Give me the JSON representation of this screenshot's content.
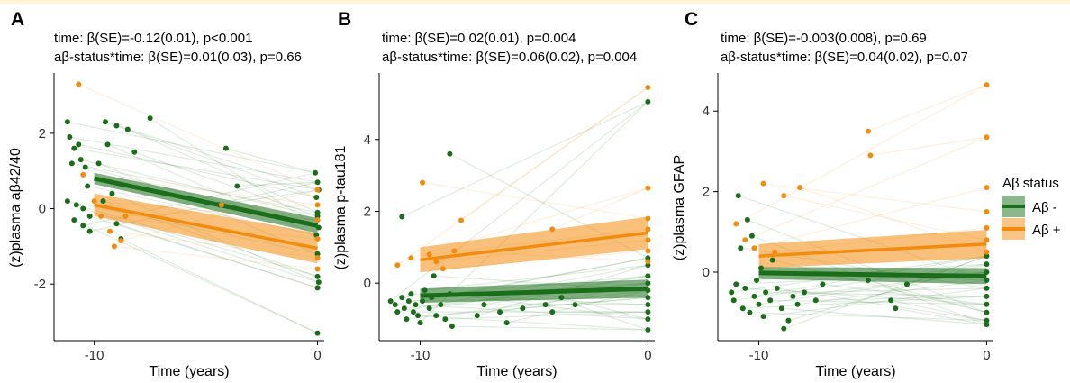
{
  "colors": {
    "neg": "#1a6e1a",
    "pos": "#f28c0f"
  },
  "chart_data": [
    {
      "type": "scatter",
      "panel_label": "A",
      "stats_line1": "time: β(SE)=-0.12(0.01), p<0.001",
      "stats_line2": "aβ-status*time: β(SE)=0.01(0.03), p=0.66",
      "xlabel": "Time (years)",
      "ylabel": "(z)plasma aβ42/40",
      "xlim": [
        -11.8,
        0.3
      ],
      "ylim": [
        -3.5,
        3.55
      ],
      "x_ticks": [
        -10,
        0
      ],
      "y_ticks": [
        -2,
        0,
        2
      ],
      "series": [
        {
          "name": "Aβ -",
          "fit": {
            "x": [
              -10,
              0
            ],
            "y": [
              0.8,
              -0.45
            ]
          },
          "ci": [
            0.15,
            0.2
          ],
          "points": [
            [
              -11.2,
              2.3
            ],
            [
              -11.1,
              1.9
            ],
            [
              -10.9,
              1.6
            ],
            [
              -10.7,
              1.7
            ],
            [
              -11,
              1.2
            ],
            [
              -10.6,
              1.3
            ],
            [
              -10.4,
              1.1
            ],
            [
              -10.3,
              0.6
            ],
            [
              -11.2,
              0.2
            ],
            [
              -10.8,
              0.1
            ],
            [
              -10.5,
              0.0
            ],
            [
              -10.2,
              -0.2
            ],
            [
              -10.9,
              -0.3
            ],
            [
              -10.5,
              -0.45
            ],
            [
              -10.2,
              -0.6
            ],
            [
              -9.5,
              2.3
            ],
            [
              -9.0,
              2.2
            ],
            [
              -8.5,
              2.1
            ],
            [
              -8.2,
              1.5
            ],
            [
              -7.5,
              2.4
            ],
            [
              -9.4,
              1.7
            ],
            [
              -9.8,
              1.2
            ],
            [
              -9.6,
              0.2
            ],
            [
              -9.2,
              0.4
            ],
            [
              -9,
              -0.4
            ],
            [
              -8.8,
              -0.8
            ],
            [
              -4.1,
              1.6
            ],
            [
              -3.6,
              0.6
            ],
            [
              -4.4,
              0.1
            ],
            [
              -0.1,
              0.95
            ],
            [
              0,
              0.7
            ],
            [
              0.05,
              0.5
            ],
            [
              -0.05,
              0.3
            ],
            [
              0,
              -0.1
            ],
            [
              0,
              -0.2
            ],
            [
              0.05,
              -0.5
            ],
            [
              -0.05,
              -0.7
            ],
            [
              0,
              -1.2
            ],
            [
              0,
              -1.8
            ],
            [
              0.05,
              -1.95
            ],
            [
              0,
              -2.1
            ],
            [
              0,
              -3.3
            ]
          ]
        },
        {
          "name": "Aβ +",
          "fit": {
            "x": [
              -10,
              0
            ],
            "y": [
              0.1,
              -1.05
            ]
          },
          "ci": [
            0.3,
            0.4
          ],
          "points": [
            [
              -10.7,
              3.3
            ],
            [
              -10.5,
              0.9
            ],
            [
              -10,
              0.2
            ],
            [
              -9.7,
              -0.2
            ],
            [
              -9.3,
              -0.6
            ],
            [
              -9.1,
              -1.0
            ],
            [
              -8.8,
              -0.85
            ],
            [
              -8.6,
              -0.2
            ],
            [
              -4.3,
              0.1
            ],
            [
              0,
              0.5
            ],
            [
              0,
              0.1
            ],
            [
              0,
              -0.3
            ],
            [
              0,
              -0.8
            ],
            [
              0,
              -1.3
            ],
            [
              0,
              -1.6
            ]
          ]
        }
      ]
    },
    {
      "type": "scatter",
      "panel_label": "B",
      "stats_line1": "time: β(SE)=0.02(0.01), p=0.004",
      "stats_line2": "aβ-status*time: β(SE)=0.06(0.02), p=0.004",
      "xlabel": "Time (years)",
      "ylabel": "(z)plasma p-tau181",
      "xlim": [
        -11.8,
        0.3
      ],
      "ylim": [
        -1.6,
        5.8
      ],
      "x_ticks": [
        -10,
        0
      ],
      "y_ticks": [
        0,
        2,
        4
      ],
      "series": [
        {
          "name": "Aβ -",
          "fit": {
            "x": [
              -10,
              0
            ],
            "y": [
              -0.35,
              -0.15
            ]
          },
          "ci": [
            0.2,
            0.25
          ],
          "points": [
            [
              -11.3,
              -0.5
            ],
            [
              -11.1,
              -0.6
            ],
            [
              -11,
              -0.8
            ],
            [
              -10.8,
              -0.4
            ],
            [
              -10.7,
              -0.7
            ],
            [
              -10.6,
              -1.0
            ],
            [
              -10.5,
              -0.5
            ],
            [
              -10.4,
              -0.3
            ],
            [
              -10.3,
              -0.8
            ],
            [
              -10.2,
              -0.6
            ],
            [
              -10.1,
              -0.9
            ],
            [
              -10,
              -1.1
            ],
            [
              -9.9,
              -0.5
            ],
            [
              -9.8,
              -0.2
            ],
            [
              -9.6,
              -0.7
            ],
            [
              -9.5,
              -0.4
            ],
            [
              -9.4,
              0.2
            ],
            [
              -9.3,
              -0.9
            ],
            [
              -9.1,
              -0.6
            ],
            [
              -8.9,
              -1.0
            ],
            [
              -8.7,
              -0.3
            ],
            [
              -8.6,
              -1.2
            ],
            [
              -10.8,
              1.85
            ],
            [
              -8.7,
              3.6
            ],
            [
              -7.5,
              -0.9
            ],
            [
              -7.2,
              -0.6
            ],
            [
              -6.5,
              -0.8
            ],
            [
              -6.2,
              -1.1
            ],
            [
              -5.5,
              -0.7
            ],
            [
              -4.5,
              -0.6
            ],
            [
              -4.2,
              -0.8
            ],
            [
              -3.8,
              -0.4
            ],
            [
              -3.2,
              -0.6
            ],
            [
              0,
              5.05
            ],
            [
              0,
              0.7
            ],
            [
              0,
              0.5
            ],
            [
              0,
              0.2
            ],
            [
              0,
              0.0
            ],
            [
              0,
              -0.2
            ],
            [
              0,
              -0.4
            ],
            [
              0,
              -0.6
            ],
            [
              0,
              -0.8
            ],
            [
              0,
              -1.0
            ],
            [
              0,
              -1.3
            ]
          ]
        },
        {
          "name": "Aβ +",
          "fit": {
            "x": [
              -10,
              0
            ],
            "y": [
              0.65,
              1.4
            ]
          },
          "ci": [
            0.35,
            0.45
          ],
          "points": [
            [
              -11,
              0.5
            ],
            [
              -10.4,
              0.7
            ],
            [
              -9.9,
              2.8
            ],
            [
              -9.6,
              0.8
            ],
            [
              -9.3,
              0.6
            ],
            [
              -9.0,
              0.4
            ],
            [
              -8.5,
              0.9
            ],
            [
              -8.2,
              1.75
            ],
            [
              -4.2,
              1.5
            ],
            [
              0,
              5.45
            ],
            [
              0,
              2.65
            ],
            [
              0,
              1.8
            ],
            [
              0,
              1.5
            ],
            [
              0,
              1.2
            ],
            [
              0,
              0.9
            ],
            [
              0,
              0.6
            ]
          ]
        }
      ]
    },
    {
      "type": "scatter",
      "panel_label": "C",
      "stats_line1": "time: β(SE)=-0.003(0.008), p=0.69",
      "stats_line2": "aβ-status*time: β(SE)=0.04(0.02), p=0.07",
      "xlabel": "Time (years)",
      "ylabel": "(z)plasma GFAP",
      "xlim": [
        -11.8,
        0.3
      ],
      "ylim": [
        -1.7,
        4.9
      ],
      "x_ticks": [
        -10,
        0
      ],
      "y_ticks": [
        0,
        2,
        4
      ],
      "series": [
        {
          "name": "Aβ -",
          "fit": {
            "x": [
              -10,
              0
            ],
            "y": [
              -0.02,
              -0.1
            ]
          },
          "ci": [
            0.15,
            0.2
          ],
          "points": [
            [
              -11.2,
              -0.5
            ],
            [
              -11.1,
              -0.7
            ],
            [
              -11,
              -0.3
            ],
            [
              -10.9,
              1.9
            ],
            [
              -10.8,
              0.6
            ],
            [
              -10.7,
              -0.9
            ],
            [
              -10.6,
              -0.4
            ],
            [
              -10.5,
              1.3
            ],
            [
              -10.4,
              -1.0
            ],
            [
              -10.3,
              0.9
            ],
            [
              -10.2,
              -0.6
            ],
            [
              -10.1,
              -0.2
            ],
            [
              -10,
              -0.8
            ],
            [
              -9.9,
              0.1
            ],
            [
              -9.8,
              -1.1
            ],
            [
              -9.7,
              -0.5
            ],
            [
              -9.5,
              -0.7
            ],
            [
              -9.4,
              0.3
            ],
            [
              -9.2,
              -0.4
            ],
            [
              -9.0,
              -0.9
            ],
            [
              -8.9,
              -1.4
            ],
            [
              -8.7,
              -1.2
            ],
            [
              -8.5,
              -0.6
            ],
            [
              -8.3,
              -0.8
            ],
            [
              -8.0,
              -0.5
            ],
            [
              -7.5,
              -0.7
            ],
            [
              -7.2,
              -0.3
            ],
            [
              -5.2,
              -0.2
            ],
            [
              -4.2,
              -0.7
            ],
            [
              -4.0,
              -0.9
            ],
            [
              -3.5,
              -0.3
            ],
            [
              0,
              0.4
            ],
            [
              0,
              0.2
            ],
            [
              0,
              0.0
            ],
            [
              0,
              -0.2
            ],
            [
              0,
              -0.4
            ],
            [
              0,
              -0.6
            ],
            [
              0,
              -0.8
            ],
            [
              0,
              -1.0
            ],
            [
              0,
              -1.2
            ],
            [
              0,
              -1.3
            ]
          ]
        },
        {
          "name": "Aβ +",
          "fit": {
            "x": [
              -10,
              0
            ],
            "y": [
              0.4,
              0.7
            ]
          },
          "ci": [
            0.3,
            0.35
          ],
          "points": [
            [
              -11,
              1.2
            ],
            [
              -10.6,
              0.8
            ],
            [
              -10.2,
              0.6
            ],
            [
              -9.8,
              2.2
            ],
            [
              -9.3,
              0.5
            ],
            [
              -8.9,
              1.9
            ],
            [
              -8.2,
              2.1
            ],
            [
              -5.2,
              3.5
            ],
            [
              -5.1,
              2.9
            ],
            [
              0,
              4.65
            ],
            [
              0,
              3.35
            ],
            [
              0,
              2.1
            ],
            [
              0,
              1.5
            ],
            [
              0,
              1.1
            ],
            [
              0,
              0.8
            ],
            [
              0,
              0.5
            ]
          ]
        }
      ]
    }
  ],
  "legend": {
    "title": "Aβ status",
    "items": [
      {
        "label": "Aβ -"
      },
      {
        "label": "Aβ +"
      }
    ]
  }
}
